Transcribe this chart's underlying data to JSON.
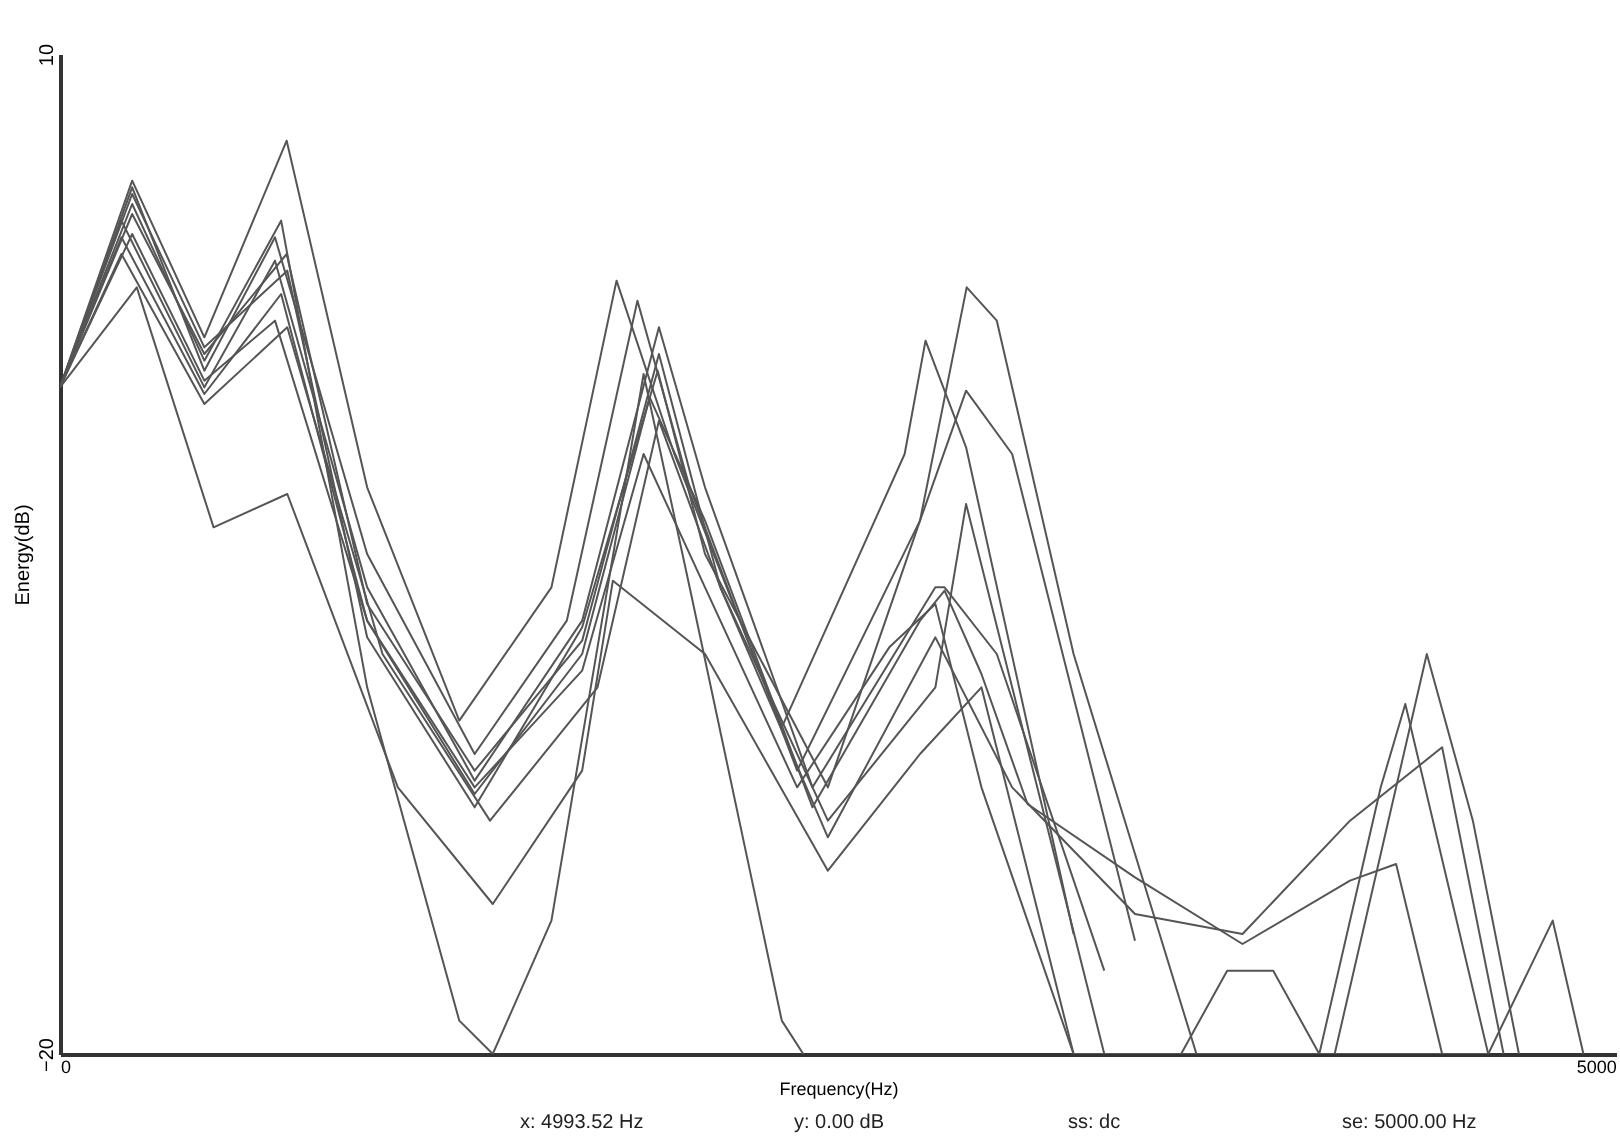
{
  "chart_data": {
    "type": "line",
    "xlabel": "Frequency(Hz)",
    "ylabel": "Energy(dB)",
    "xlim": [
      0,
      5066
    ],
    "ylim": [
      -20,
      10
    ],
    "xticks": [
      0,
      5000
    ],
    "yticks": [
      -20,
      10
    ],
    "grid": false,
    "legend": false,
    "annotations": [
      "x: 4993.52 Hz",
      "y: 0.00 dB",
      "ss: dc",
      "se: 5000.00 Hz"
    ],
    "series": [
      {
        "color": "#555555",
        "x": [
          0,
          235,
          470,
          738,
          1000,
          1300,
          1600,
          1812,
          2000,
          2350,
          2750,
          2818,
          2950,
          3300
        ],
        "values": [
          0,
          6.2,
          1.5,
          7.4,
          -3,
          -10,
          -6,
          3.2,
          -2,
          -10.2,
          -2,
          1.4,
          -1.8,
          -16.4
        ]
      },
      {
        "color": "#555555",
        "x": [
          0,
          235,
          470,
          700,
          1000,
          1350,
          1650,
          1880,
          2050,
          2400,
          2800,
          2950,
          3100,
          3500
        ],
        "values": [
          0,
          6.0,
          0.5,
          4.5,
          -5,
          -11,
          -7,
          2.6,
          -3,
          -11.5,
          -4,
          -0.1,
          -2,
          -16.6
        ]
      },
      {
        "color": "#555555",
        "x": [
          0,
          200,
          470,
          700,
          1000,
          1350,
          1700,
          1950,
          2100,
          2450,
          2850,
          2880,
          3050,
          3400
        ],
        "values": [
          0,
          5,
          0,
          3.8,
          -6,
          -11.8,
          -7,
          1.8,
          -3,
          -12,
          -6,
          -6,
          -8,
          -17.5
        ]
      },
      {
        "color": "#555555",
        "x": [
          0,
          200,
          470,
          720,
          1000,
          1350,
          1700,
          1920,
          2100,
          2450,
          2800,
          2880,
          3000,
          3150,
          3500,
          3850,
          4200,
          4350,
          4500
        ],
        "values": [
          0,
          4.5,
          -0.2,
          2.8,
          -7,
          -12.2,
          -8,
          -0.3,
          -4,
          -12.6,
          -7,
          -6.1,
          -8.6,
          -12.5,
          -14.7,
          -16.7,
          -14.8,
          -14.3,
          -20
        ]
      },
      {
        "color": "#555555",
        "x": [
          0,
          200,
          470,
          740,
          1050,
          1400,
          1750,
          1950,
          2150,
          2500,
          2850,
          3100,
          3500,
          3850,
          4200,
          4500,
          4700
        ],
        "values": [
          0,
          4,
          -0.5,
          1.8,
          -8,
          -13,
          -9,
          -1,
          -6,
          -13.5,
          -7.5,
          -12,
          -15.8,
          -16.4,
          -13,
          -10.8,
          -20
        ]
      },
      {
        "color": "#555555",
        "x": [
          0,
          250,
          500,
          740,
          1100,
          1409,
          1700,
          1800,
          2100,
          2500,
          2800,
          3000,
          3300
        ],
        "values": [
          0,
          3,
          -4.2,
          -3.2,
          -12,
          -15.5,
          -11.5,
          -5.8,
          -8,
          -14.5,
          -11,
          -9,
          -20
        ]
      },
      {
        "color": "#555555",
        "x": [
          0,
          235,
          470,
          720,
          1000,
          1300,
          1409,
          1600,
          1900,
          2050,
          2350,
          2420
        ],
        "values": [
          0,
          5.5,
          0.8,
          5,
          -9,
          -19,
          -20,
          -16,
          0.4,
          -6,
          -19,
          -20
        ]
      },
      {
        "color": "#555555",
        "x": [
          0,
          235,
          470,
          740,
          1000,
          1350,
          1700,
          1946,
          2100,
          2500,
          2800,
          2952,
          3050,
          3300,
          3500,
          3700,
          4150,
          4450,
          4600,
          4750
        ],
        "values": [
          0,
          5.8,
          1.2,
          3.5,
          -7.5,
          -12.6,
          -7.2,
          0.5,
          -5,
          -12,
          -4,
          3,
          2,
          -8,
          -14,
          -20,
          -20,
          -8,
          -13,
          -20
        ]
      },
      {
        "color": "#555555",
        "x": [
          0,
          235,
          470,
          738,
          1000,
          1350,
          1700,
          1950,
          2150,
          2500,
          2850,
          2950,
          3100,
          3400,
          4100,
          4300,
          4380,
          4650
        ],
        "values": [
          0,
          5.2,
          1.0,
          4.0,
          -6.5,
          -11.5,
          -7.6,
          1.0,
          -6,
          -13,
          -9,
          -3.5,
          -9,
          -20,
          -20,
          -12,
          -9.5,
          -20
        ]
      },
      {
        "color": "#555555",
        "x": [
          0,
          235,
          470,
          700,
          1000,
          1350,
          1700,
          1900,
          2100,
          2400,
          2700,
          2850,
          3000,
          3300,
          3650,
          3800,
          3950,
          4100,
          4650,
          4860,
          4960
        ],
        "values": [
          0,
          4.6,
          0.2,
          2.0,
          -7,
          -12,
          -8.5,
          -2,
          -6,
          -12,
          -7.8,
          -6.5,
          -12,
          -20,
          -20,
          -17.5,
          -17.5,
          -20,
          -20,
          -16,
          -20
        ]
      }
    ]
  }
}
